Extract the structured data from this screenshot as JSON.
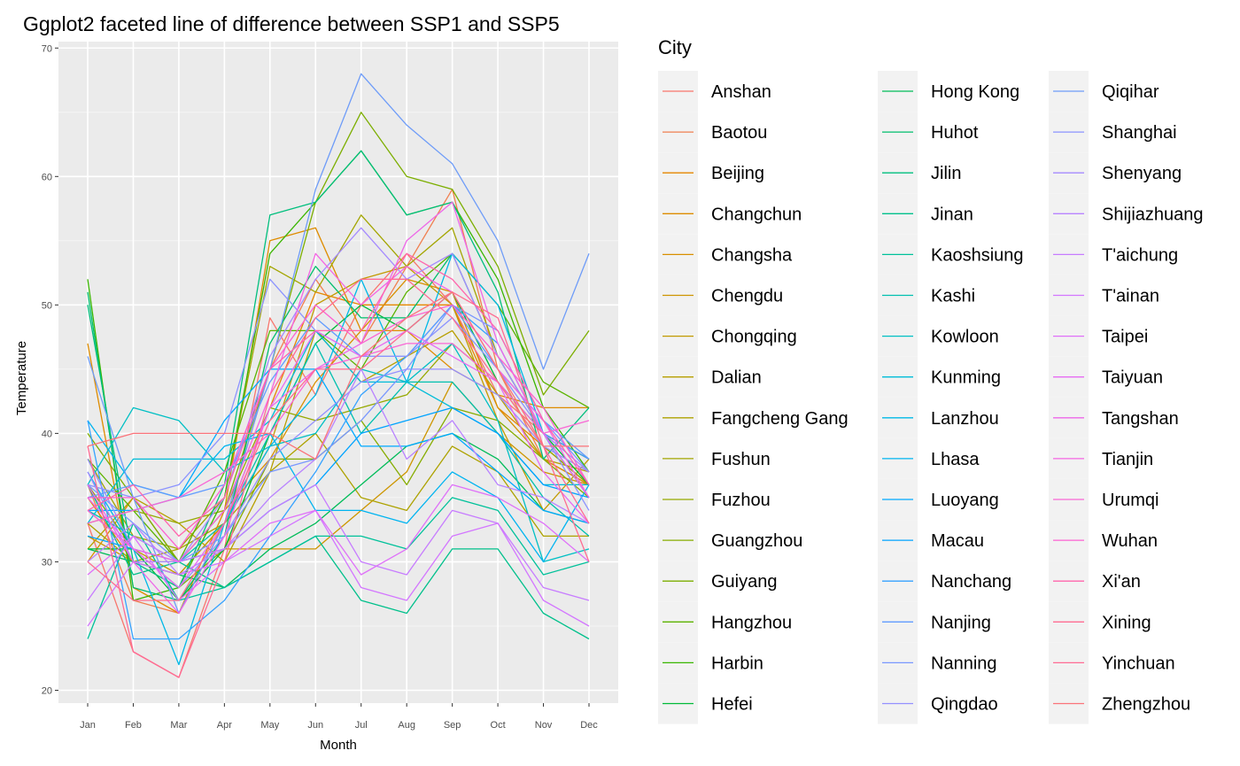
{
  "chart_data": {
    "type": "line",
    "title": "Ggplot2 faceted line of difference between SSP1 and SSP5",
    "xlabel": "Month",
    "ylabel": "Temperature",
    "legend_title": "City",
    "legend_position": "right",
    "grid": true,
    "ylim": [
      19,
      70.5
    ],
    "x": [
      "Jan",
      "Feb",
      "Mar",
      "Apr",
      "May",
      "Jun",
      "Jul",
      "Aug",
      "Sep",
      "Oct",
      "Nov",
      "Dec"
    ],
    "y_ticks": [
      20,
      30,
      40,
      50,
      60,
      70
    ],
    "series": [
      {
        "name": "Anshan",
        "color": "#F8766D",
        "values": [
          33,
          23,
          21,
          31,
          49,
          43,
          50,
          54,
          50,
          43,
          40,
          38
        ]
      },
      {
        "name": "Baotou",
        "color": "#F07F4F",
        "values": [
          36,
          27,
          26,
          33,
          45,
          52,
          47,
          53,
          59,
          45,
          38,
          36
        ]
      },
      {
        "name": "Beijing",
        "color": "#E58700",
        "values": [
          35,
          30,
          29,
          33,
          42,
          51,
          50,
          50,
          50,
          42,
          39,
          36
        ]
      },
      {
        "name": "Changchun",
        "color": "#DE8C00",
        "values": [
          47,
          28,
          26,
          34,
          55,
          56,
          48,
          48,
          45,
          43,
          42,
          42
        ]
      },
      {
        "name": "Changsha",
        "color": "#D89000",
        "values": [
          30,
          35,
          30,
          34,
          38,
          44,
          48,
          52,
          51,
          42,
          38,
          36
        ]
      },
      {
        "name": "Chengdu",
        "color": "#CD9600",
        "values": [
          32,
          30,
          30,
          31,
          31,
          31,
          34,
          37,
          44,
          40,
          37,
          36
        ]
      },
      {
        "name": "Chongqing",
        "color": "#C29A00",
        "values": [
          34,
          31,
          29,
          33,
          39,
          50,
          52,
          53,
          50,
          41,
          34,
          38
        ]
      },
      {
        "name": "Dalian",
        "color": "#B79F00",
        "values": [
          31,
          35,
          33,
          30,
          37,
          48,
          44,
          46,
          48,
          43,
          38,
          37
        ]
      },
      {
        "name": "Fangcheng Gang",
        "color": "#ADA200",
        "values": [
          33,
          30,
          31,
          33,
          37,
          40,
          35,
          34,
          39,
          37,
          32,
          32
        ]
      },
      {
        "name": "Fushun",
        "color": "#A3A500",
        "values": [
          38,
          32,
          31,
          35,
          53,
          51,
          57,
          53,
          56,
          46,
          40,
          38
        ]
      },
      {
        "name": "Fuzhou",
        "color": "#96A900",
        "values": [
          33,
          34,
          33,
          34,
          42,
          41,
          42,
          43,
          47,
          44,
          39,
          36
        ]
      },
      {
        "name": "Guangzhou",
        "color": "#86AC00",
        "values": [
          36,
          31,
          28,
          31,
          38,
          38,
          41,
          36,
          42,
          41,
          38,
          35
        ]
      },
      {
        "name": "Guiyang",
        "color": "#7CAE00",
        "values": [
          40,
          35,
          30,
          34,
          45,
          58,
          65,
          60,
          59,
          53,
          43,
          48
        ]
      },
      {
        "name": "Hangzhou",
        "color": "#5BB300",
        "values": [
          38,
          34,
          30,
          37,
          48,
          48,
          45,
          51,
          54,
          50,
          44,
          42
        ]
      },
      {
        "name": "Harbin",
        "color": "#39B600",
        "values": [
          52,
          27,
          28,
          35,
          54,
          58,
          62,
          57,
          58,
          52,
          42,
          37
        ]
      },
      {
        "name": "Hefei",
        "color": "#00BA38",
        "values": [
          31,
          31,
          27,
          31,
          40,
          47,
          50,
          48,
          51,
          44,
          40,
          36
        ]
      },
      {
        "name": "Hong Kong",
        "color": "#00BC59",
        "values": [
          31,
          30,
          29,
          28,
          31,
          33,
          36,
          39,
          40,
          38,
          34,
          33
        ]
      },
      {
        "name": "Huhot",
        "color": "#00BE6C",
        "values": [
          51,
          28,
          27,
          32,
          47,
          53,
          49,
          49,
          54,
          46,
          40,
          35
        ]
      },
      {
        "name": "Jilin",
        "color": "#00BF7D",
        "values": [
          50,
          30,
          28,
          36,
          57,
          58,
          62,
          57,
          58,
          51,
          38,
          42
        ]
      },
      {
        "name": "Jinan",
        "color": "#00C08B",
        "values": [
          36,
          29,
          30,
          28,
          30,
          32,
          27,
          26,
          31,
          31,
          26,
          24
        ]
      },
      {
        "name": "Kaoshsiung",
        "color": "#00C19A",
        "values": [
          24,
          33,
          27,
          28,
          30,
          32,
          32,
          31,
          35,
          34,
          29,
          30
        ]
      },
      {
        "name": "Kashi",
        "color": "#00C0AF",
        "values": [
          34,
          32,
          30,
          33,
          40,
          47,
          40,
          44,
          44,
          40,
          35,
          32
        ]
      },
      {
        "name": "Kowloon",
        "color": "#00BFC4",
        "values": [
          36,
          42,
          41,
          37,
          39,
          40,
          45,
          44,
          47,
          41,
          30,
          31
        ]
      },
      {
        "name": "Kunming",
        "color": "#00BCD8",
        "values": [
          33,
          38,
          38,
          38,
          41,
          48,
          44,
          44,
          42,
          40,
          36,
          36
        ]
      },
      {
        "name": "Lanzhou",
        "color": "#00B8E7",
        "values": [
          37,
          31,
          22,
          33,
          39,
          43,
          52,
          44,
          54,
          50,
          40,
          35
        ]
      },
      {
        "name": "Lhasa",
        "color": "#00B4F0",
        "values": [
          41,
          36,
          35,
          39,
          40,
          34,
          34,
          33,
          37,
          35,
          30,
          36
        ]
      },
      {
        "name": "Luoyang",
        "color": "#00A9FF",
        "values": [
          34,
          34,
          35,
          41,
          45,
          45,
          39,
          39,
          40,
          37,
          34,
          33
        ]
      },
      {
        "name": "Macau",
        "color": "#00A3FF",
        "values": [
          32,
          31,
          30,
          31,
          34,
          36,
          40,
          41,
          42,
          40,
          36,
          35
        ]
      },
      {
        "name": "Nanchang",
        "color": "#35A2FF",
        "values": [
          41,
          24,
          24,
          27,
          32,
          37,
          43,
          46,
          50,
          47,
          40,
          38
        ]
      },
      {
        "name": "Nanjing",
        "color": "#619CFF",
        "values": [
          35,
          36,
          35,
          36,
          44,
          49,
          46,
          46,
          50,
          45,
          41,
          38
        ]
      },
      {
        "name": "Nanning",
        "color": "#7997FF",
        "values": [
          36,
          33,
          30,
          32,
          37,
          38,
          41,
          45,
          50,
          48,
          41,
          37
        ]
      },
      {
        "name": "Qingdao",
        "color": "#9590FF",
        "values": [
          38,
          31,
          28,
          32,
          38,
          41,
          44,
          45,
          45,
          43,
          39,
          37
        ]
      },
      {
        "name": "Qiqihar",
        "color": "#6E9CF8",
        "values": [
          46,
          35,
          26,
          33,
          45,
          59,
          68,
          64,
          61,
          55,
          45,
          54
        ]
      },
      {
        "name": "Shanghai",
        "color": "#8B93FF",
        "values": [
          36,
          35,
          36,
          40,
          52,
          48,
          46,
          46,
          49,
          45,
          40,
          34
        ]
      },
      {
        "name": "Shenyang",
        "color": "#A58AFF",
        "values": [
          37,
          30,
          30,
          35,
          46,
          52,
          56,
          52,
          54,
          46,
          40,
          37
        ]
      },
      {
        "name": "Shijiazhuang",
        "color": "#B983FF",
        "values": [
          30,
          33,
          29,
          31,
          35,
          38,
          45,
          38,
          41,
          36,
          35,
          33
        ]
      },
      {
        "name": "T'aichung",
        "color": "#C77CFF",
        "values": [
          27,
          32,
          30,
          31,
          34,
          36,
          30,
          29,
          34,
          33,
          28,
          27
        ]
      },
      {
        "name": "T'ainan",
        "color": "#D376FF",
        "values": [
          25,
          30,
          29,
          30,
          32,
          34,
          28,
          27,
          32,
          33,
          27,
          25
        ]
      },
      {
        "name": "Taipei",
        "color": "#DF70F9",
        "values": [
          29,
          32,
          27,
          30,
          33,
          34,
          29,
          31,
          36,
          35,
          33,
          30
        ]
      },
      {
        "name": "Taiyuan",
        "color": "#E76BF3",
        "values": [
          35,
          31,
          28,
          33,
          42,
          48,
          46,
          48,
          46,
          44,
          37,
          33
        ]
      },
      {
        "name": "Tangshan",
        "color": "#EE67E8",
        "values": [
          36,
          30,
          26,
          32,
          42,
          45,
          47,
          55,
          58,
          47,
          40,
          35
        ]
      },
      {
        "name": "Tianjin",
        "color": "#F564E3",
        "values": [
          34,
          31,
          30,
          34,
          43,
          54,
          50,
          53,
          51,
          45,
          41,
          35
        ]
      },
      {
        "name": "Urumqi",
        "color": "#F967D5",
        "values": [
          33,
          34,
          35,
          37,
          40,
          45,
          46,
          47,
          47,
          44,
          40,
          41
        ]
      },
      {
        "name": "Wuhan",
        "color": "#FD61D1",
        "values": [
          35,
          35,
          31,
          36,
          45,
          50,
          47,
          49,
          50,
          46,
          42,
          36
        ]
      },
      {
        "name": "Xi'an",
        "color": "#FF65AC",
        "values": [
          34,
          36,
          32,
          35,
          45,
          48,
          48,
          54,
          52,
          48,
          41,
          36
        ]
      },
      {
        "name": "Xining",
        "color": "#FF6C91",
        "values": [
          30,
          27,
          27,
          33,
          41,
          45,
          45,
          48,
          51,
          49,
          39,
          30
        ]
      },
      {
        "name": "Yinchuan",
        "color": "#FF6B94",
        "values": [
          39,
          23,
          21,
          30,
          43,
          49,
          52,
          52,
          49,
          44,
          39,
          33
        ]
      },
      {
        "name": "Zhengzhou",
        "color": "#FB737A",
        "values": [
          39,
          40,
          40,
          40,
          40,
          38,
          46,
          49,
          51,
          45,
          39,
          39
        ]
      }
    ]
  }
}
